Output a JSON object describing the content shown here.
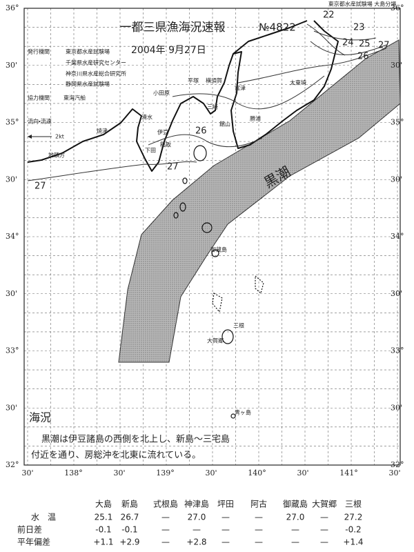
{
  "header": {
    "agency_note": "東京都水産試験場 大島分場",
    "title": "一都三県漁海況速報",
    "number": "№4822",
    "date": "2004年 9月27日",
    "issuers": [
      "発行機関",
      "東京都水産試験場",
      "千葉県水産研究センター",
      "神奈川県水産総合研究所",
      "静岡県水産試験場"
    ],
    "cooperator": [
      "協力機関",
      "東海汽船"
    ]
  },
  "map": {
    "current_legend": "流向・流速",
    "current_speed": "2kt",
    "current_name": "黒潮",
    "lat_labels": [
      "36°",
      "30'",
      "35°",
      "30'",
      "34°",
      "30'",
      "33°",
      "30'",
      "32°"
    ],
    "lon_labels": [
      "30'",
      "138°",
      "30'",
      "139°",
      "30'",
      "140°",
      "30'",
      "141°",
      "30'"
    ],
    "isotherm_labels": [
      "22",
      "23",
      "24",
      "25",
      "26",
      "27",
      "26",
      "27",
      "27"
    ],
    "places": [
      "平塚",
      "横須賀",
      "富津",
      "小田原",
      "三崎",
      "館山",
      "勝浦",
      "太東埼",
      "清水",
      "焼津",
      "地頭方",
      "伊豆",
      "稲取",
      "下田",
      "御蔵島",
      "三根",
      "大賀郷",
      "青ヶ島"
    ]
  },
  "conditions": {
    "heading": "海況",
    "text": [
      "黒潮は伊豆諸島の西側を北上し、新島～三宅島",
      "付近を通り、房総沖を北東に流れている。"
    ]
  },
  "table": {
    "columns": [
      "大島",
      "新島",
      "式根島",
      "神津島",
      "坪田",
      "阿古",
      "御蔵島",
      "大賀郷",
      "三根"
    ],
    "rows": [
      {
        "label": "水　温",
        "cells": [
          "25.1",
          "26.7",
          "—",
          "27.0",
          "—",
          "—",
          "27.0",
          "—",
          "27.2"
        ]
      },
      {
        "label": "前日差",
        "cells": [
          "-0.1",
          "-0.1",
          "—",
          "—",
          "—",
          "—",
          "—",
          "—",
          "-0.2"
        ]
      },
      {
        "label": "平年偏差",
        "cells": [
          "+1.1",
          "+2.9",
          "—",
          "+2.8",
          "—",
          "—",
          "—",
          "—",
          "+1.4"
        ]
      }
    ]
  }
}
